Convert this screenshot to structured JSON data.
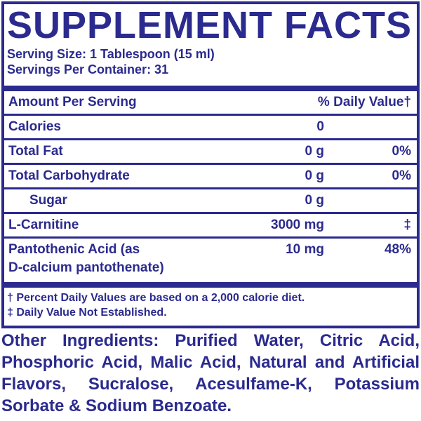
{
  "title": "SUPPLEMENT FACTS",
  "serving_size": "Serving Size: 1 Tablespoon (15 ml)",
  "servings_per_container": "Servings Per Container: 31",
  "header": {
    "amount": "Amount Per Serving",
    "dv": "% Daily Value†"
  },
  "rows": [
    {
      "name": "Calories",
      "amount": "0",
      "dv": ""
    },
    {
      "name": "Total Fat",
      "amount": "0 g",
      "dv": "0%"
    },
    {
      "name": "Total Carbohydrate",
      "amount": "0 g",
      "dv": "0%"
    },
    {
      "name": "Sugar",
      "amount": "0 g",
      "dv": ""
    },
    {
      "name": "L-Carnitine",
      "amount": "3000 mg",
      "dv": "‡"
    },
    {
      "name": "Pantothenic Acid (as",
      "name2": "D-calcium pantothenate)",
      "amount": "10 mg",
      "dv": "48%"
    }
  ],
  "footnotes": [
    "† Percent Daily Values are based on a 2,000 calorie diet.",
    "‡ Daily Value Not Established."
  ],
  "other_ingredients": {
    "label": "Other Ingredients:",
    "text": "Purified Water, Citric Acid, Phosphoric Acid, Malic Acid, Natural and Artificial Flavors, Sucralose, Acesulfame-K, Potassium Sorbate & Sodium Benzoate."
  },
  "colors": {
    "ink": "#2b2a8e",
    "background": "#ffffff"
  }
}
